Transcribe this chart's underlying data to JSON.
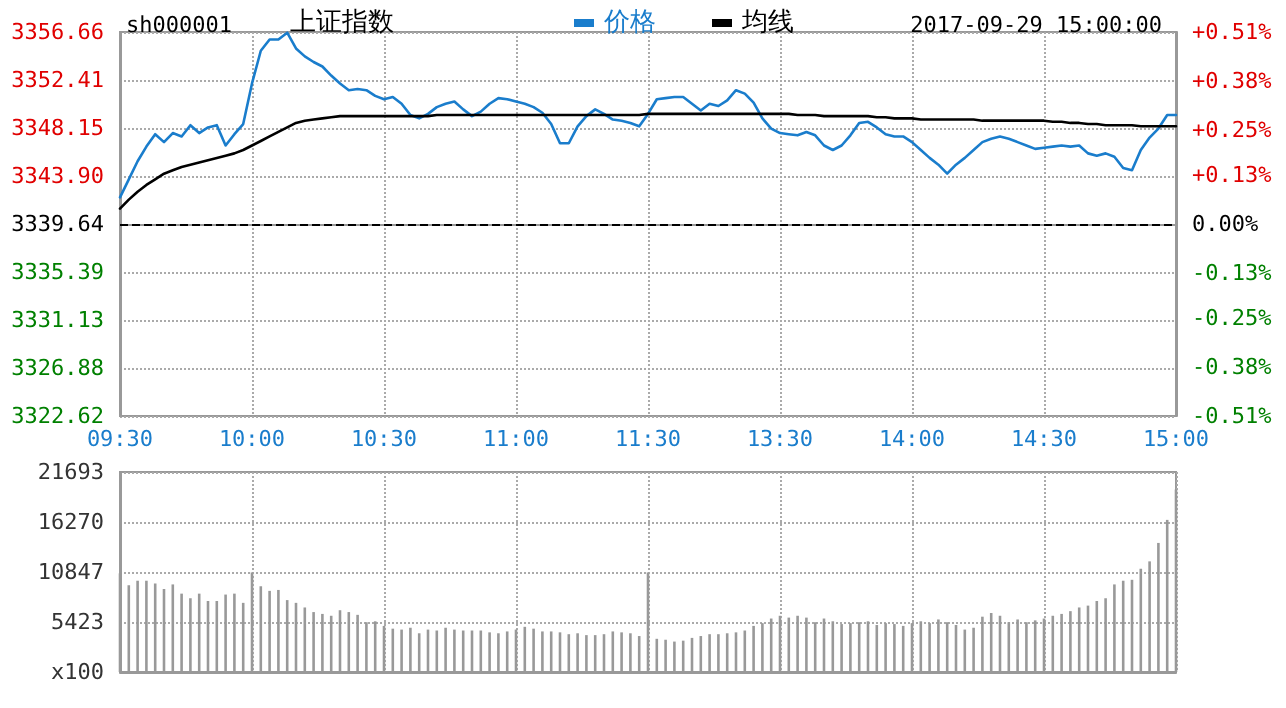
{
  "chart_data": {
    "type": "line",
    "title": "上证指数",
    "subtitle": "sh000001",
    "annotations": [
      "2017-09-29 15:00:00"
    ],
    "legend": "top",
    "grid": true,
    "marker": "none",
    "line_style": "solid",
    "categories": [
      "09:30",
      null,
      null,
      null,
      null,
      null,
      null,
      null,
      null,
      null,
      null,
      null,
      null,
      null,
      null,
      "10:00",
      null,
      null,
      null,
      null,
      null,
      null,
      null,
      null,
      null,
      null,
      null,
      null,
      null,
      null,
      "10:30",
      null,
      null,
      null,
      null,
      null,
      null,
      null,
      null,
      null,
      null,
      null,
      null,
      null,
      null,
      "11:00",
      null,
      null,
      null,
      null,
      null,
      null,
      null,
      null,
      null,
      null,
      null,
      null,
      null,
      null,
      "11:30",
      null,
      null,
      null,
      null,
      null,
      null,
      null,
      null,
      null,
      null,
      null,
      null,
      null,
      null,
      "13:30",
      null,
      null,
      null,
      null,
      null,
      null,
      null,
      null,
      null,
      null,
      null,
      null,
      null,
      null,
      "14:00",
      null,
      null,
      null,
      null,
      null,
      null,
      null,
      null,
      null,
      null,
      null,
      null,
      null,
      null,
      "14:30",
      null,
      null,
      null,
      null,
      null,
      null,
      null,
      null,
      null,
      null,
      null,
      null,
      null,
      null,
      "15:00"
    ],
    "ylim": [
      3322.62,
      3356.66
    ],
    "yticks": [
      {
        "value": 3322.62,
        "label": "3322.62"
      },
      {
        "value": 3326.88,
        "label": "3326.88"
      },
      {
        "value": 3331.13,
        "label": "3331.13"
      },
      {
        "value": 3335.39,
        "label": "3335.39"
      },
      {
        "value": 3339.64,
        "label": "3339.64"
      },
      {
        "value": 3343.9,
        "label": "3343.90"
      },
      {
        "value": 3348.15,
        "label": "3348.15"
      },
      {
        "value": 3352.41,
        "label": "3352.41"
      },
      {
        "value": 3356.66,
        "label": "3356.66"
      }
    ],
    "y2lim": [
      -0.51,
      0.51
    ],
    "y2ticks": [
      {
        "value": -0.51,
        "label": "-0.51%"
      },
      {
        "value": -0.38,
        "label": "-0.38%"
      },
      {
        "value": -0.25,
        "label": "-0.25%"
      },
      {
        "value": -0.13,
        "label": "-0.13%"
      },
      {
        "value": 0,
        "label": "0.00%"
      },
      {
        "value": 0.13,
        "label": "+0.13%"
      },
      {
        "value": 0.25,
        "label": "+0.25%"
      },
      {
        "value": 0.38,
        "label": "+0.38%"
      },
      {
        "value": 0.51,
        "label": "+0.51%"
      }
    ],
    "y3lim": [
      0,
      21693
    ],
    "y3ticks": [
      {
        "value": 0,
        "label": "x100"
      },
      5423,
      10847,
      16270,
      21693
    ],
    "ref_lines": [
      {
        "axis": "y",
        "value": 3339.64,
        "color": "#000000",
        "line_style": "dashed"
      }
    ],
    "series": [
      {
        "name": "价格",
        "color": "#1a7dcc",
        "values": [
          3342.0,
          3343.6,
          3345.2,
          3346.5,
          3347.6,
          3346.9,
          3347.7,
          3347.4,
          3348.4,
          3347.7,
          3348.2,
          3348.4,
          3346.6,
          3347.6,
          3348.5,
          3352.1,
          3355.0,
          3356.0,
          3356.0,
          3356.6,
          3355.2,
          3354.5,
          3354.0,
          3353.6,
          3352.8,
          3352.1,
          3351.5,
          3351.6,
          3351.5,
          3351.0,
          3350.7,
          3350.9,
          3350.3,
          3349.3,
          3349.0,
          3349.4,
          3350.0,
          3350.3,
          3350.5,
          3349.8,
          3349.2,
          3349.6,
          3350.3,
          3350.8,
          3350.7,
          3350.5,
          3350.3,
          3350.0,
          3349.5,
          3348.5,
          3346.8,
          3346.8,
          3348.3,
          3349.2,
          3349.8,
          3349.4,
          3348.9,
          3348.8,
          3348.6,
          3348.3,
          3349.4,
          3350.7,
          3350.8,
          3350.9,
          3350.9,
          3350.3,
          3349.7,
          3350.3,
          3350.1,
          3350.6,
          3351.5,
          3351.2,
          3350.4,
          3349.0,
          3348.1,
          3347.7,
          3347.6,
          3347.5,
          3347.8,
          3347.5,
          3346.6,
          3346.2,
          3346.6,
          3347.5,
          3348.6,
          3348.7,
          3348.2,
          3347.6,
          3347.4,
          3347.4,
          3346.9,
          3346.2,
          3345.5,
          3344.9,
          3344.1,
          3344.9,
          3345.5,
          3346.2,
          3346.9,
          3347.2,
          3347.4,
          3347.2,
          3346.9,
          3346.6,
          3346.3,
          3346.4,
          3346.5,
          3346.6,
          3346.5,
          3346.6,
          3345.9,
          3345.7,
          3345.9,
          3345.6,
          3344.6,
          3344.4,
          3346.2,
          3347.3,
          3348.1,
          3349.3,
          3349.3
        ]
      },
      {
        "name": "均线",
        "color": "#000000",
        "values": [
          3341.0,
          3341.8,
          3342.5,
          3343.1,
          3343.6,
          3344.1,
          3344.4,
          3344.7,
          3344.9,
          3345.1,
          3345.3,
          3345.5,
          3345.7,
          3345.9,
          3346.2,
          3346.6,
          3347.0,
          3347.4,
          3347.8,
          3348.2,
          3348.6,
          3348.8,
          3348.9,
          3349.0,
          3349.1,
          3349.2,
          3349.2,
          3349.2,
          3349.2,
          3349.2,
          3349.2,
          3349.2,
          3349.2,
          3349.2,
          3349.2,
          3349.2,
          3349.3,
          3349.3,
          3349.3,
          3349.3,
          3349.3,
          3349.3,
          3349.3,
          3349.3,
          3349.3,
          3349.3,
          3349.3,
          3349.3,
          3349.3,
          3349.3,
          3349.3,
          3349.3,
          3349.3,
          3349.3,
          3349.3,
          3349.3,
          3349.3,
          3349.3,
          3349.3,
          3349.3,
          3349.4,
          3349.4,
          3349.4,
          3349.4,
          3349.4,
          3349.4,
          3349.4,
          3349.4,
          3349.4,
          3349.4,
          3349.4,
          3349.4,
          3349.4,
          3349.4,
          3349.4,
          3349.4,
          3349.4,
          3349.3,
          3349.3,
          3349.3,
          3349.2,
          3349.2,
          3349.2,
          3349.2,
          3349.2,
          3349.2,
          3349.1,
          3349.1,
          3349.0,
          3349.0,
          3349.0,
          3348.9,
          3348.9,
          3348.9,
          3348.9,
          3348.9,
          3348.9,
          3348.9,
          3348.8,
          3348.8,
          3348.8,
          3348.8,
          3348.8,
          3348.8,
          3348.8,
          3348.8,
          3348.7,
          3348.7,
          3348.6,
          3348.6,
          3348.5,
          3348.5,
          3348.4,
          3348.4,
          3348.4,
          3348.4,
          3348.3,
          3348.3,
          3348.3,
          3348.3,
          3348.3
        ]
      },
      {
        "type": "bar",
        "axis": "y3",
        "color": "#999999",
        "values": [
          10700,
          9400,
          9900,
          9900,
          9600,
          9000,
          9500,
          8500,
          8000,
          8500,
          7700,
          7700,
          8400,
          8500,
          7500,
          10800,
          9300,
          8800,
          8900,
          7800,
          7500,
          7000,
          6500,
          6300,
          6100,
          6700,
          6500,
          6200,
          5400,
          5500,
          5000,
          4700,
          4600,
          4800,
          4200,
          4600,
          4500,
          4800,
          4600,
          4500,
          4500,
          4500,
          4300,
          4200,
          4400,
          4600,
          4900,
          4700,
          4400,
          4400,
          4300,
          4100,
          4200,
          4000,
          4000,
          4100,
          4400,
          4300,
          4200,
          3900,
          10800,
          3600,
          3500,
          3300,
          3400,
          3700,
          3900,
          4100,
          4100,
          4200,
          4300,
          4500,
          5000,
          5300,
          5800,
          6100,
          5900,
          6100,
          5900,
          5400,
          5800,
          5500,
          5200,
          5300,
          5400,
          5500,
          5100,
          5300,
          5200,
          5000,
          5300,
          5500,
          5300,
          5700,
          5400,
          5100,
          4600,
          4800,
          6000,
          6400,
          6100,
          5400,
          5700,
          5400,
          5600,
          5800,
          6100,
          6300,
          6600,
          7000,
          7200,
          7700,
          8000,
          9500,
          9900,
          10000,
          11200,
          12000,
          14000,
          16500,
          19800
        ]
      }
    ]
  }
}
